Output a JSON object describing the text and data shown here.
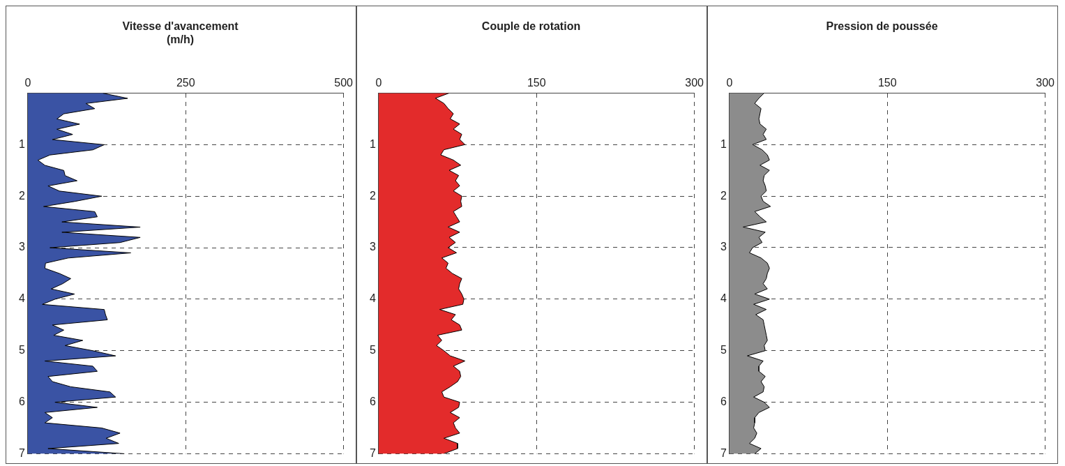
{
  "chart_data": [
    {
      "type": "area",
      "orientation": "horizontal",
      "title": "Vitesse d'avancement\n(m/h)",
      "color": "#3a53a4",
      "grid": true,
      "x": [
        0,
        0.1,
        0.2,
        0.3,
        0.4,
        0.5,
        0.6,
        0.7,
        0.8,
        0.9,
        1,
        1.1,
        1.2,
        1.3,
        1.4,
        1.5,
        1.6,
        1.7,
        1.8,
        1.9,
        2,
        2.1,
        2.2,
        2.3,
        2.4,
        2.5,
        2.6,
        2.7,
        2.8,
        2.9,
        3,
        3.1,
        3.2,
        3.3,
        3.4,
        3.5,
        3.6,
        3.7,
        3.8,
        3.9,
        4,
        4.1,
        4.2,
        4.3,
        4.4,
        4.5,
        4.6,
        4.7,
        4.8,
        4.9,
        5,
        5.1,
        5.2,
        5.3,
        5.4,
        5.5,
        5.6,
        5.7,
        5.8,
        5.9,
        6,
        6.1,
        6.2,
        6.3,
        6.4,
        6.5,
        6.6,
        6.7,
        6.8,
        6.9,
        7
      ],
      "values": [
        119,
        158,
        92,
        106,
        57,
        46,
        82,
        46,
        71,
        39,
        121,
        103,
        35,
        16,
        27,
        57,
        59,
        78,
        32,
        50,
        117,
        75,
        25,
        106,
        110,
        54,
        178,
        54,
        178,
        146,
        35,
        163,
        64,
        28,
        27,
        50,
        68,
        55,
        37,
        74,
        43,
        23,
        121,
        123,
        126,
        39,
        57,
        41,
        87,
        59,
        103,
        139,
        27,
        103,
        110,
        32,
        39,
        68,
        130,
        139,
        43,
        110,
        27,
        39,
        27,
        117,
        146,
        124,
        144,
        32,
        153
      ],
      "xlim": [
        0,
        500
      ],
      "xticks": [
        0,
        250,
        500
      ],
      "ylim": [
        7,
        0
      ],
      "yticks": [
        1,
        2,
        3,
        4,
        5,
        6,
        7
      ]
    },
    {
      "type": "area",
      "orientation": "horizontal",
      "title": "Couple de rotation",
      "color": "#e32b2b",
      "grid": true,
      "x": [
        0,
        0.1,
        0.2,
        0.3,
        0.4,
        0.5,
        0.6,
        0.7,
        0.8,
        0.9,
        1,
        1.1,
        1.2,
        1.3,
        1.4,
        1.5,
        1.6,
        1.7,
        1.8,
        1.9,
        2,
        2.1,
        2.2,
        2.3,
        2.4,
        2.5,
        2.6,
        2.7,
        2.8,
        2.9,
        3,
        3.1,
        3.2,
        3.3,
        3.4,
        3.5,
        3.6,
        3.7,
        3.8,
        3.9,
        4,
        4.1,
        4.2,
        4.3,
        4.4,
        4.5,
        4.6,
        4.7,
        4.8,
        4.9,
        5,
        5.1,
        5.2,
        5.3,
        5.4,
        5.5,
        5.6,
        5.7,
        5.8,
        5.9,
        6,
        6.1,
        6.2,
        6.3,
        6.4,
        6.5,
        6.6,
        6.7,
        6.8,
        6.9,
        7
      ],
      "values": [
        67,
        54,
        62,
        66,
        71,
        68,
        77,
        71,
        79,
        77,
        82,
        62,
        59,
        71,
        78,
        67,
        76,
        73,
        77,
        71,
        79,
        78,
        79,
        71,
        74,
        77,
        66,
        77,
        67,
        73,
        66,
        74,
        60,
        66,
        64,
        70,
        79,
        77,
        76,
        79,
        81,
        80,
        58,
        73,
        69,
        77,
        79,
        56,
        60,
        55,
        62,
        68,
        82,
        71,
        77,
        78,
        75,
        68,
        60,
        62,
        77,
        76,
        68,
        77,
        71,
        73,
        77,
        62,
        75,
        75,
        62
      ],
      "xlim": [
        0,
        300
      ],
      "xticks": [
        0,
        150,
        300
      ],
      "ylim": [
        7,
        0
      ],
      "yticks": [
        1,
        2,
        3,
        4,
        5,
        6,
        7
      ]
    },
    {
      "type": "area",
      "orientation": "horizontal",
      "title": "Pression de poussée",
      "color": "#8c8c8c",
      "grid": true,
      "x": [
        0,
        0.1,
        0.2,
        0.3,
        0.4,
        0.5,
        0.6,
        0.7,
        0.8,
        0.9,
        1,
        1.1,
        1.2,
        1.3,
        1.4,
        1.5,
        1.6,
        1.7,
        1.8,
        1.9,
        2,
        2.1,
        2.2,
        2.3,
        2.4,
        2.5,
        2.6,
        2.7,
        2.8,
        2.9,
        3,
        3.1,
        3.2,
        3.3,
        3.4,
        3.5,
        3.6,
        3.7,
        3.8,
        3.9,
        4,
        4.1,
        4.2,
        4.3,
        4.4,
        4.5,
        4.6,
        4.7,
        4.8,
        4.9,
        5,
        5.1,
        5.2,
        5.3,
        5.4,
        5.5,
        5.6,
        5.7,
        5.8,
        5.9,
        6,
        6.1,
        6.2,
        6.3,
        6.4,
        6.5,
        6.6,
        6.7,
        6.8,
        6.9,
        7
      ],
      "values": [
        33,
        28,
        24,
        30,
        29,
        28,
        29,
        35,
        32,
        35,
        22,
        31,
        36,
        38,
        29,
        38,
        33,
        32,
        34,
        35,
        30,
        32,
        39,
        24,
        29,
        35,
        13,
        34,
        28,
        31,
        22,
        19,
        30,
        36,
        38,
        36,
        35,
        32,
        36,
        24,
        38,
        23,
        35,
        25,
        32,
        33,
        34,
        35,
        36,
        33,
        34,
        17,
        32,
        28,
        28,
        34,
        30,
        33,
        32,
        23,
        33,
        38,
        28,
        24,
        24,
        23,
        26,
        24,
        19,
        30,
        24
      ],
      "xlim": [
        0,
        300
      ],
      "xticks": [
        0,
        150,
        300
      ],
      "ylim": [
        7,
        0
      ],
      "yticks": [
        1,
        2,
        3,
        4,
        5,
        6,
        7
      ]
    }
  ]
}
